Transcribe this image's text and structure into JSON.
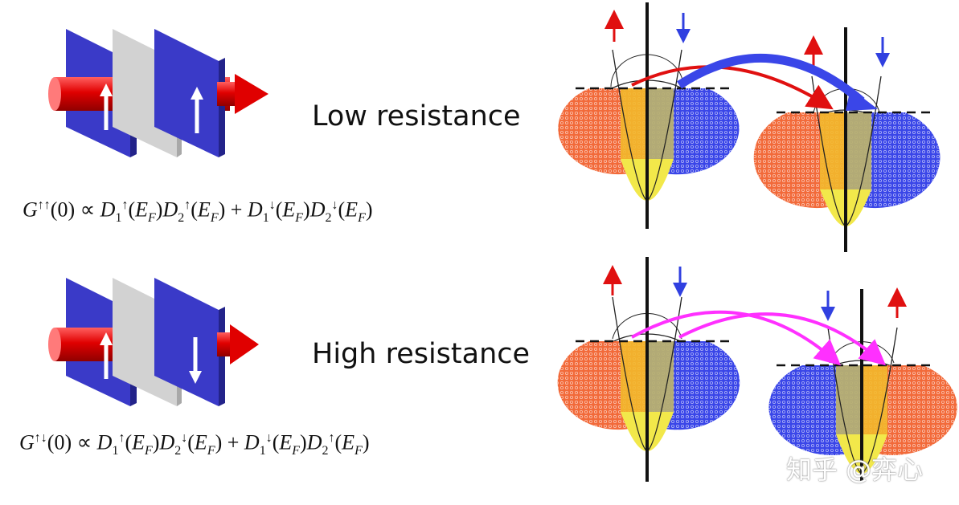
{
  "rows": [
    {
      "id": "parallel",
      "label": "Low resistance",
      "formula": {
        "lhs_sup": "↑↑",
        "t1_sup1": "↑",
        "t1_sup2": "↑",
        "t2_sup1": "↓",
        "t2_sup2": "↓"
      },
      "left_layer_spin": "up",
      "right_layer_spin": "up",
      "arrows": [
        "red",
        "blue"
      ]
    },
    {
      "id": "antiparallel",
      "label": "High resistance",
      "formula": {
        "lhs_sup": "↑↓",
        "t1_sup1": "↑",
        "t1_sup2": "↓",
        "t2_sup1": "↓",
        "t2_sup2": "↑"
      },
      "left_layer_spin": "up",
      "right_layer_spin": "down",
      "arrows": [
        "magenta",
        "magenta"
      ]
    }
  ],
  "colors": {
    "layer_blue": "#3a3ac8",
    "spacer_gray": "#cfcfcf",
    "current_red": "#e00000",
    "spin_up_red": "#e01010",
    "spin_down_blue": "#3040e0",
    "dos_orange": "#f26a3a",
    "dos_blue": "#3a46e8",
    "dos_yellow": "#f2e84a",
    "dos_olive": "#b8b070",
    "tunnel_magenta": "#ff30ff"
  },
  "watermark": "知乎 @弈心"
}
